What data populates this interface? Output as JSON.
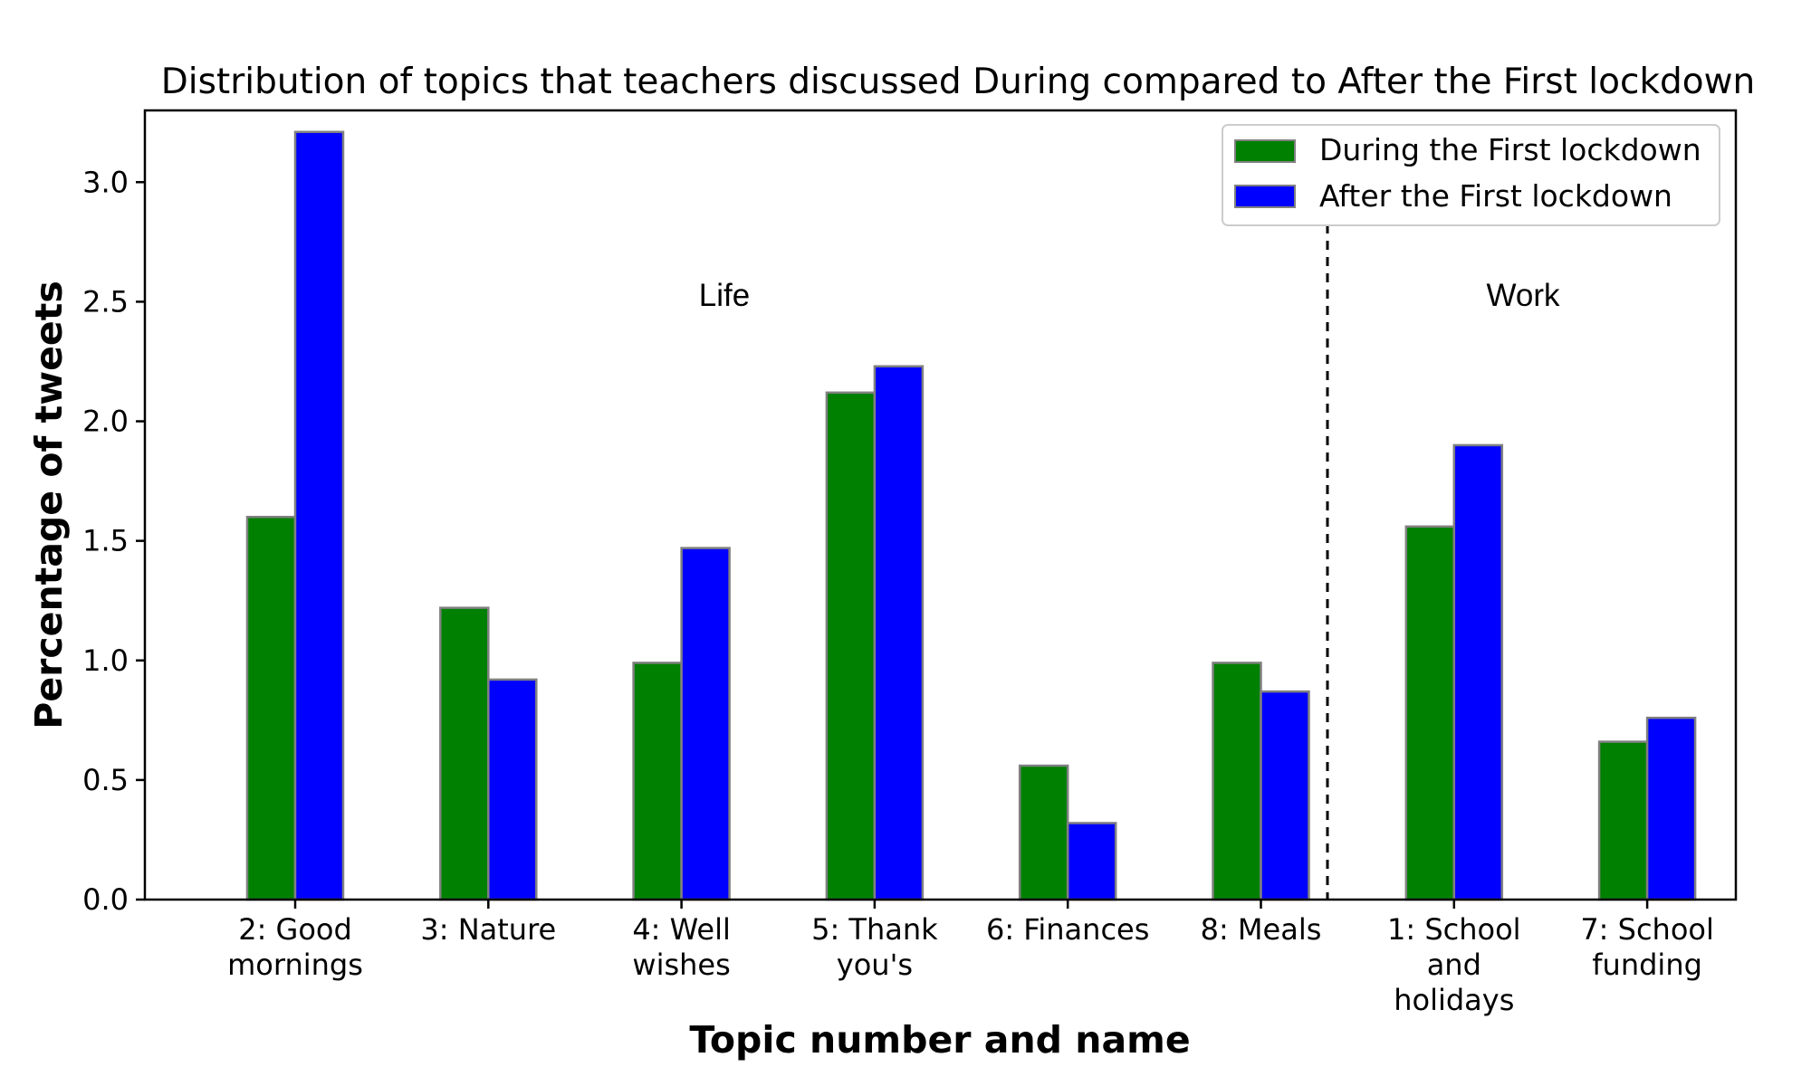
{
  "chart_data": {
    "type": "bar",
    "title": "Distribution of topics that teachers discussed During compared to After the First lockdown",
    "xlabel": "Topic number and name",
    "ylabel": "Percentage of tweets",
    "categories": [
      [
        "2: Good",
        "mornings"
      ],
      [
        "3: Nature"
      ],
      [
        "4: Well",
        "wishes"
      ],
      [
        "5: Thank",
        "you's"
      ],
      [
        "6: Finances"
      ],
      [
        "8: Meals"
      ],
      [
        "1: School",
        "and",
        "holidays"
      ],
      [
        "7: School",
        "funding"
      ]
    ],
    "series": [
      {
        "name": "During the First lockdown",
        "color": "#008000",
        "values": [
          1.6,
          1.22,
          0.99,
          2.12,
          0.56,
          0.99,
          1.56,
          0.66
        ]
      },
      {
        "name": "After the First lockdown",
        "color": "#0000ff",
        "values": [
          3.21,
          0.92,
          1.47,
          2.23,
          0.32,
          0.87,
          1.9,
          0.76
        ]
      }
    ],
    "ylim": [
      0,
      3.3
    ],
    "yticks": [
      "0.0",
      "0.5",
      "1.0",
      "1.5",
      "2.0",
      "2.5",
      "3.0"
    ],
    "bar_edge_color": "#808080",
    "regions": [
      {
        "label": "Life"
      },
      {
        "label": "Work"
      }
    ],
    "divider": {
      "style": "dashed",
      "after_category_index": 5
    },
    "legend_position": "top-right",
    "grid": false
  }
}
